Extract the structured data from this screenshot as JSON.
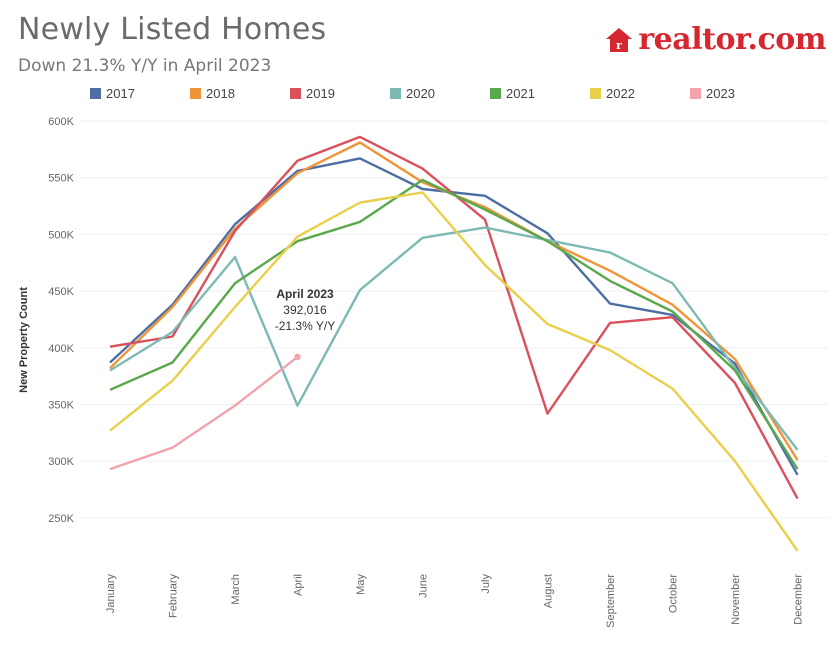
{
  "header": {
    "title": "Newly Listed Homes",
    "subtitle": "Down 21.3% Y/Y in April 2023",
    "logo_text": "realtor.com",
    "logo_icon": "house-icon"
  },
  "colors": {
    "2017": "#4e6fa3",
    "2018": "#f0943a",
    "2019": "#d9515b",
    "2020": "#7dbab3",
    "2021": "#59a84b",
    "2022": "#e8d04a",
    "2023": "#f2a3ad",
    "brand": "#d6262f"
  },
  "chart_data": {
    "type": "line",
    "title": "Newly Listed Homes",
    "subtitle": "Down 21.3% Y/Y in April 2023",
    "ylabel": "New Property Count",
    "xlabel": "",
    "ylim": [
      200000,
      600000
    ],
    "yticks": [
      250000,
      300000,
      350000,
      400000,
      450000,
      500000,
      550000,
      600000
    ],
    "ytick_labels": [
      "250K",
      "300K",
      "350K",
      "400K",
      "450K",
      "500K",
      "550K",
      "600K"
    ],
    "grid": true,
    "legend_position": "top",
    "categories": [
      "January",
      "February",
      "March",
      "April",
      "May",
      "June",
      "July",
      "August",
      "September",
      "October",
      "November",
      "December"
    ],
    "series": [
      {
        "name": "2017",
        "values": [
          387000,
          438000,
          509000,
          556000,
          567000,
          540000,
          534000,
          501000,
          439000,
          429000,
          386000,
          288000
        ]
      },
      {
        "name": "2018",
        "values": [
          382000,
          436000,
          505000,
          554000,
          581000,
          546000,
          524000,
          494000,
          468000,
          438000,
          390000,
          301000
        ]
      },
      {
        "name": "2019",
        "values": [
          401000,
          410000,
          503000,
          565000,
          586000,
          558000,
          513000,
          342000,
          422000,
          427000,
          369000,
          267000
        ]
      },
      {
        "name": "2020",
        "values": [
          380000,
          414000,
          480000,
          349000,
          451000,
          497000,
          506000,
          495000,
          484000,
          457000,
          382000,
          310000
        ]
      },
      {
        "name": "2021",
        "values": [
          363000,
          387000,
          457000,
          494000,
          511000,
          548000,
          522000,
          494000,
          459000,
          432000,
          380000,
          293000
        ]
      },
      {
        "name": "2022",
        "values": [
          327000,
          371000,
          436000,
          498000,
          528000,
          537000,
          473000,
          421000,
          398000,
          364000,
          300000,
          221000
        ]
      },
      {
        "name": "2023",
        "values": [
          293000,
          312000,
          349000,
          392016,
          null,
          null,
          null,
          null,
          null,
          null,
          null,
          null
        ]
      }
    ],
    "annotation": {
      "series": "2023",
      "category": "April",
      "title": "April 2023",
      "value_text": "392,016",
      "change_text": "-21.3% Y/Y"
    }
  }
}
